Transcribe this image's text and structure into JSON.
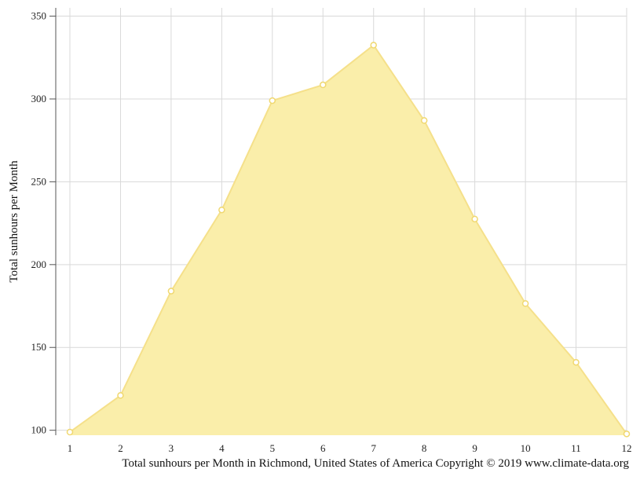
{
  "chart_data": {
    "type": "area",
    "title": "",
    "ylabel": "Total sunhours per Month",
    "xlabel": "",
    "caption": "Total sunhours per Month in Richmond, United States of America Copyright © 2019 www.climate-data.org",
    "x": [
      1,
      2,
      3,
      4,
      5,
      6,
      7,
      8,
      9,
      10,
      11,
      12
    ],
    "xticks": [
      "1",
      "2",
      "3",
      "4",
      "5",
      "6",
      "7",
      "8",
      "9",
      "10",
      "11",
      "12"
    ],
    "yticks": [
      100,
      150,
      200,
      250,
      300,
      350
    ],
    "ylim": [
      97,
      355
    ],
    "series": [
      {
        "values": [
          98.9,
          121,
          184,
          233,
          299,
          308.5,
          332.5,
          287,
          227.5,
          176.5,
          141,
          97.8
        ]
      }
    ],
    "grid": true,
    "colors": {
      "fill": "#faeeaa",
      "line": "#f5e08a",
      "marker": "#f0d870",
      "grid": "#d9d9d9",
      "axis": "#555555"
    }
  }
}
